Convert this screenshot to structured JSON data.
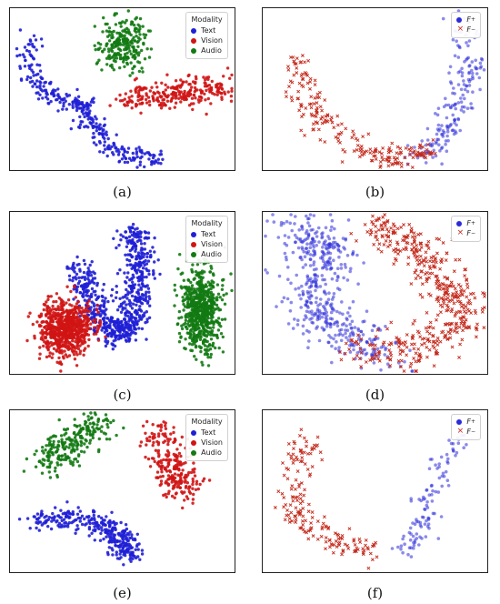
{
  "figure": {
    "captions": [
      "(a)",
      "(b)",
      "(c)",
      "(d)",
      "(e)",
      "(f)"
    ]
  },
  "legends": {
    "modality_title": "Modality",
    "modality_entries": [
      {
        "label": "Text",
        "color": "#1f1fd6"
      },
      {
        "label": "Vision",
        "color": "#d01414"
      },
      {
        "label": "Audio",
        "color": "#127a12"
      }
    ],
    "split_entries": [
      {
        "label": "F",
        "sup": "+",
        "marker": "circle",
        "color": "#2b2bdb"
      },
      {
        "label": "F",
        "sup": "−",
        "marker": "x",
        "color": "#c42a1c"
      }
    ]
  },
  "chart_data": [
    {
      "panel": "a",
      "type": "scatter",
      "title": "",
      "xlabel": "",
      "ylabel": "",
      "grid": false,
      "legend": "top-right",
      "series": [
        {
          "name": "Text",
          "color": "#1f1fd6",
          "path": [
            [
              0.08,
              0.2
            ],
            [
              0.1,
              0.45
            ],
            [
              0.22,
              0.57
            ],
            [
              0.35,
              0.6
            ],
            [
              0.37,
              0.74
            ],
            [
              0.48,
              0.9
            ],
            [
              0.68,
              0.93
            ]
          ],
          "n": 320,
          "spread": 0.028
        },
        {
          "name": "Vision",
          "color": "#d01414",
          "path": [
            [
              0.52,
              0.55
            ],
            [
              0.66,
              0.55
            ],
            [
              0.8,
              0.52
            ],
            [
              0.93,
              0.5
            ]
          ],
          "n": 260,
          "spread": 0.045
        },
        {
          "name": "Audio",
          "color": "#127a12",
          "blob": [
            0.5,
            0.22,
            0.13,
            0.2
          ],
          "n": 240
        }
      ]
    },
    {
      "panel": "b",
      "type": "scatter",
      "title": "",
      "xlabel": "",
      "ylabel": "",
      "grid": false,
      "legend": "top-right",
      "series": [
        {
          "name": "F+",
          "marker": "circle",
          "color": "#2b2bdb",
          "path": [
            [
              0.9,
              0.08
            ],
            [
              0.92,
              0.35
            ],
            [
              0.87,
              0.58
            ],
            [
              0.8,
              0.8
            ],
            [
              0.68,
              0.93
            ]
          ],
          "n": 180,
          "spread": 0.035
        },
        {
          "name": "F-",
          "marker": "x",
          "color": "#c42a1c",
          "path": [
            [
              0.16,
              0.3
            ],
            [
              0.18,
              0.55
            ],
            [
              0.3,
              0.75
            ],
            [
              0.48,
              0.9
            ],
            [
              0.6,
              0.93
            ],
            [
              0.74,
              0.87
            ]
          ],
          "n": 220,
          "spread": 0.035
        }
      ]
    },
    {
      "panel": "c",
      "type": "scatter",
      "title": "",
      "xlabel": "",
      "ylabel": "",
      "grid": false,
      "legend": "top-right",
      "series": [
        {
          "name": "Text",
          "color": "#1f1fd6",
          "path": [
            [
              0.55,
              0.1
            ],
            [
              0.58,
              0.35
            ],
            [
              0.55,
              0.65
            ],
            [
              0.48,
              0.78
            ],
            [
              0.38,
              0.6
            ],
            [
              0.3,
              0.35
            ]
          ],
          "n": 700,
          "spread": 0.035
        },
        {
          "name": "Vision",
          "color": "#d01414",
          "blob": [
            0.25,
            0.72,
            0.14,
            0.2
          ],
          "n": 700
        },
        {
          "name": "Audio",
          "color": "#127a12",
          "blob": [
            0.85,
            0.6,
            0.1,
            0.3
          ],
          "n": 650
        }
      ]
    },
    {
      "panel": "d",
      "type": "scatter",
      "title": "",
      "xlabel": "",
      "ylabel": "",
      "grid": false,
      "legend": "top-right",
      "series": [
        {
          "name": "F+",
          "marker": "circle",
          "color": "#2b2bdb",
          "path": [
            [
              0.15,
              0.08
            ],
            [
              0.3,
              0.25
            ],
            [
              0.2,
              0.55
            ],
            [
              0.35,
              0.75
            ],
            [
              0.55,
              0.9
            ]
          ],
          "n": 480,
          "spread": 0.07
        },
        {
          "name": "F-",
          "marker": "x",
          "color": "#c42a1c",
          "path": [
            [
              0.48,
              0.07
            ],
            [
              0.68,
              0.22
            ],
            [
              0.82,
              0.45
            ],
            [
              0.9,
              0.65
            ],
            [
              0.7,
              0.85
            ],
            [
              0.42,
              0.85
            ]
          ],
          "n": 480,
          "spread": 0.06
        }
      ]
    },
    {
      "panel": "e",
      "type": "scatter",
      "title": "",
      "xlabel": "",
      "ylabel": "",
      "grid": false,
      "legend": "top-right",
      "series": [
        {
          "name": "Text",
          "color": "#1f1fd6",
          "path": [
            [
              0.1,
              0.68
            ],
            [
              0.3,
              0.67
            ],
            [
              0.45,
              0.73
            ],
            [
              0.5,
              0.82
            ],
            [
              0.55,
              0.9
            ]
          ],
          "n": 320,
          "spread": 0.035
        },
        {
          "name": "Vision",
          "color": "#d01414",
          "path": [
            [
              0.66,
              0.12
            ],
            [
              0.72,
              0.35
            ],
            [
              0.78,
              0.52
            ]
          ],
          "n": 240,
          "spread": 0.05
        },
        {
          "name": "Audio",
          "color": "#127a12",
          "path": [
            [
              0.4,
              0.07
            ],
            [
              0.28,
              0.2
            ],
            [
              0.15,
              0.34
            ]
          ],
          "n": 240,
          "spread": 0.045
        }
      ]
    },
    {
      "panel": "f",
      "type": "scatter",
      "title": "",
      "xlabel": "",
      "ylabel": "",
      "grid": false,
      "legend": "top-right",
      "series": [
        {
          "name": "F+",
          "marker": "circle",
          "color": "#2b2bdb",
          "path": [
            [
              0.92,
              0.14
            ],
            [
              0.8,
              0.32
            ],
            [
              0.75,
              0.55
            ],
            [
              0.7,
              0.74
            ],
            [
              0.62,
              0.88
            ]
          ],
          "n": 110,
          "spread": 0.03
        },
        {
          "name": "F-",
          "marker": "x",
          "color": "#c42a1c",
          "path": [
            [
              0.2,
              0.18
            ],
            [
              0.15,
              0.35
            ],
            [
              0.12,
              0.6
            ],
            [
              0.2,
              0.72
            ],
            [
              0.35,
              0.82
            ],
            [
              0.5,
              0.88
            ]
          ],
          "n": 180,
          "spread": 0.04
        }
      ]
    }
  ]
}
